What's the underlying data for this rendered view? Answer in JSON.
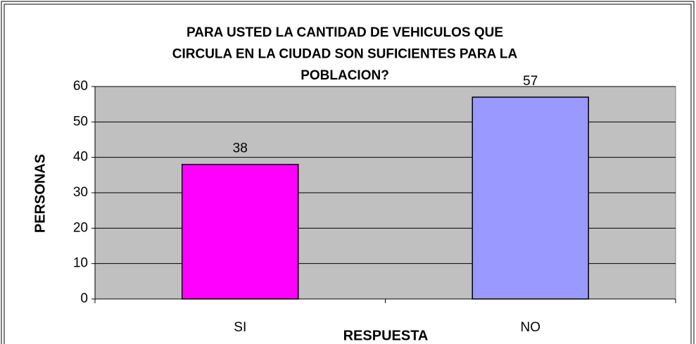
{
  "chart_data": {
    "type": "bar",
    "title": [
      "PARA USTED LA CANTIDAD DE VEHICULOS  QUE",
      "CIRCULA EN LA CIUDAD SON SUFICIENTES PARA LA",
      "POBLACION?"
    ],
    "x_label": "RESPUESTA",
    "y_label": "PERSONAS",
    "categories": [
      "SI",
      "NO"
    ],
    "values": [
      38,
      57
    ],
    "colors": [
      "#ff00ff",
      "#9999ff"
    ],
    "ylim": [
      0,
      60
    ],
    "yticks": [
      0,
      10,
      20,
      30,
      40,
      50,
      60
    ],
    "grid": true
  }
}
